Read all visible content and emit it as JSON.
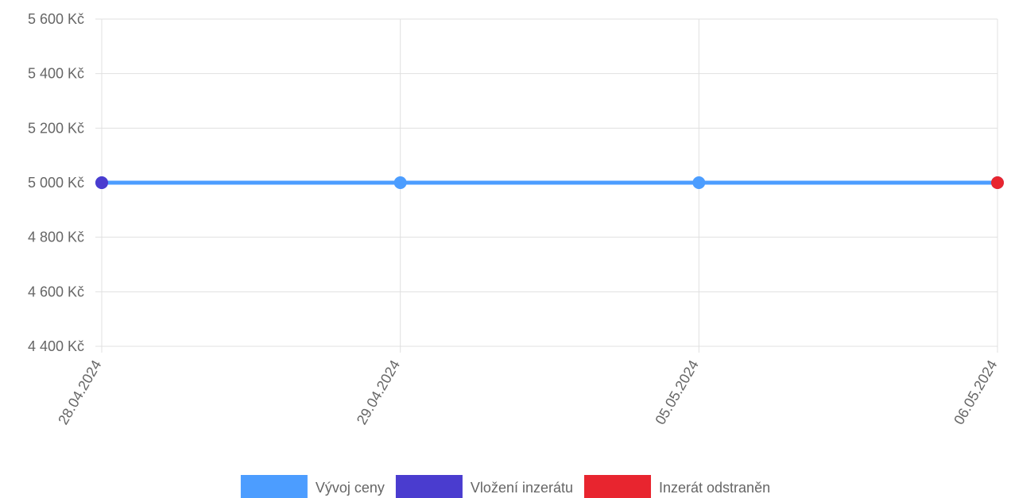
{
  "chart_data": {
    "type": "line",
    "x": [
      "28.04.2024",
      "29.04.2024",
      "05.05.2024",
      "06.05.2024"
    ],
    "series": [
      {
        "name": "Vývoj ceny",
        "values": [
          5000,
          5000,
          5000,
          5000
        ],
        "color": "#4c9dff"
      }
    ],
    "markers": [
      {
        "name": "Vložení inzerátu",
        "x": "28.04.2024",
        "y": 5000,
        "color": "#4a3ccf"
      },
      {
        "name": "Inzerát odstraněn",
        "x": "06.05.2024",
        "y": 5000,
        "color": "#e8252f"
      }
    ],
    "y_ticks": [
      {
        "value": 5600,
        "label": "5 600 Kč"
      },
      {
        "value": 5400,
        "label": "5 400 Kč"
      },
      {
        "value": 5200,
        "label": "5 200 Kč"
      },
      {
        "value": 5000,
        "label": "5 000 Kč"
      },
      {
        "value": 4800,
        "label": "4 800 Kč"
      },
      {
        "value": 4600,
        "label": "4 600 Kč"
      },
      {
        "value": 4400,
        "label": "4 400 Kč"
      }
    ],
    "ylim": [
      4400,
      5600
    ],
    "grid": true,
    "legend": {
      "placement": "bottom",
      "items": [
        {
          "label": "Vývoj ceny",
          "color": "#4c9dff"
        },
        {
          "label": "Vložení inzerátu",
          "color": "#4a3ccf"
        },
        {
          "label": "Inzerát odstraněn",
          "color": "#e8252f"
        }
      ]
    }
  }
}
